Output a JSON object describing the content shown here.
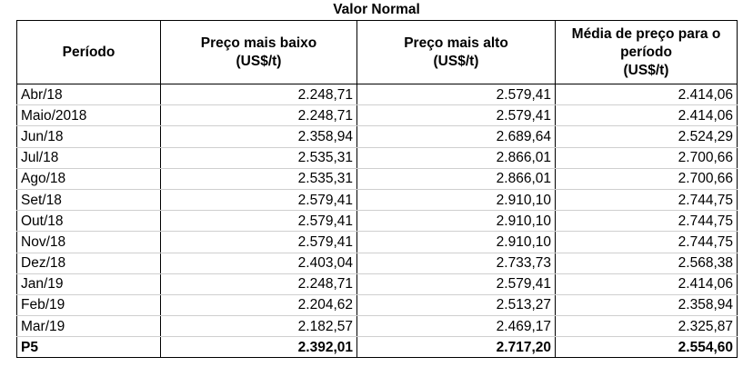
{
  "table": {
    "caption": "Valor Normal",
    "headers": {
      "periodo": "Período",
      "baixo_line1": "Preço mais baixo",
      "baixo_line2": "(US$/t)",
      "alto_line1": "Preço mais alto",
      "alto_line2": "(US$/t)",
      "media_line1": "Média de preço para o",
      "media_line2": "período",
      "media_line3": "(US$/t)"
    },
    "rows": [
      {
        "periodo": "Abr/18",
        "baixo": "2.248,71",
        "alto": "2.579,41",
        "media": "2.414,06"
      },
      {
        "periodo": "Maio/2018",
        "baixo": "2.248,71",
        "alto": "2.579,41",
        "media": "2.414,06"
      },
      {
        "periodo": "Jun/18",
        "baixo": "2.358,94",
        "alto": "2.689,64",
        "media": "2.524,29"
      },
      {
        "periodo": "Jul/18",
        "baixo": "2.535,31",
        "alto": "2.866,01",
        "media": "2.700,66"
      },
      {
        "periodo": "Ago/18",
        "baixo": "2.535,31",
        "alto": "2.866,01",
        "media": "2.700,66"
      },
      {
        "periodo": "Set/18",
        "baixo": "2.579,41",
        "alto": "2.910,10",
        "media": "2.744,75"
      },
      {
        "periodo": "Out/18",
        "baixo": "2.579,41",
        "alto": "2.910,10",
        "media": "2.744,75"
      },
      {
        "periodo": "Nov/18",
        "baixo": "2.579,41",
        "alto": "2.910,10",
        "media": "2.744,75"
      },
      {
        "periodo": "Dez/18",
        "baixo": "2.403,04",
        "alto": "2.733,73",
        "media": "2.568,38"
      },
      {
        "periodo": "Jan/19",
        "baixo": "2.248,71",
        "alto": "2.579,41",
        "media": "2.414,06"
      },
      {
        "periodo": "Feb/19",
        "baixo": "2.204,62",
        "alto": "2.513,27",
        "media": "2.358,94"
      },
      {
        "periodo": "Mar/19",
        "baixo": "2.182,57",
        "alto": "2.469,17",
        "media": "2.325,87"
      }
    ],
    "total": {
      "periodo": "P5",
      "baixo": "2.392,01",
      "alto": "2.717,20",
      "media": "2.554,60"
    }
  }
}
